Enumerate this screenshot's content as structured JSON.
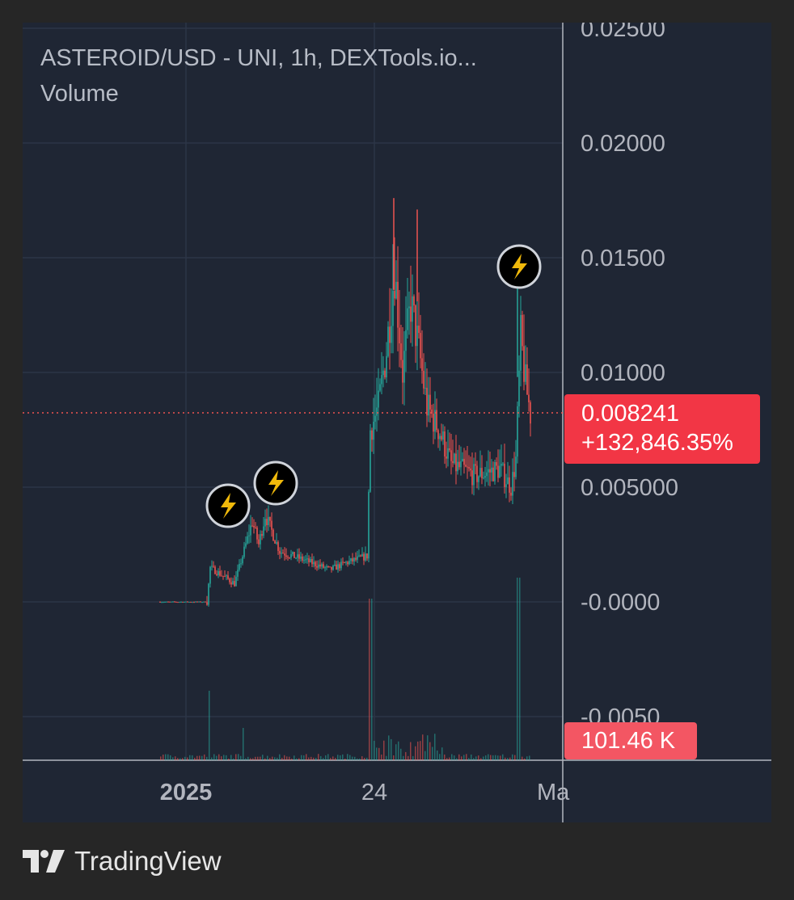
{
  "header": {
    "title": "ASTEROID/USD - UNI, 1h, DEXTools.io...",
    "volume_label": "Volume"
  },
  "badges": {
    "price": "0.008241",
    "change": "+132,846.35%",
    "volume": "101.46 K"
  },
  "brand": {
    "name": "TradingView"
  },
  "colors": {
    "background": "#1f2634",
    "up": "#26a69a",
    "down": "#ef5350",
    "price_badge": "#f23645",
    "grid": "#2c3546",
    "axis_text": "#b2b5be",
    "marker": "#f0b90b"
  },
  "chart_data": {
    "type": "candlestick",
    "title": "ASTEROID/USD - UNI, 1h, DEXTools.io...",
    "grid": true,
    "y_ticks": [
      "0.02500",
      "0.02000",
      "0.01500",
      "0.01000",
      "0.005000",
      "-0.0000",
      "-0.0050"
    ],
    "y_tick_values": [
      0.025,
      0.02,
      0.015,
      0.01,
      0.005,
      0.0,
      -0.005
    ],
    "ylim": [
      -0.0056,
      0.0262
    ],
    "x_ticks": [
      "2025",
      "24",
      "Ma"
    ],
    "last_price": 0.008241,
    "price_series": {
      "name": "ASTEROID/USD",
      "values": [
        0.0,
        0.0,
        0.0,
        0.0,
        0.0,
        0.0,
        0.0,
        0.0,
        0.0,
        0.0,
        0.0,
        0.0,
        0.0,
        0.0,
        0.0,
        0.0,
        0.0,
        0.0,
        0.0,
        0.0,
        0.0,
        0.0,
        0.0,
        0.0,
        0.0,
        0.0,
        0.0,
        0.0,
        0.0,
        0.0,
        0.0,
        0.0,
        0.0,
        0.0,
        0.0,
        0.0,
        0.0,
        0.0,
        0.0,
        0.0,
        0.0,
        0.0,
        0.0,
        0.0,
        0.0,
        0.0,
        0.0,
        0.0,
        0.0,
        0.0,
        0.0,
        0.0,
        0.0,
        0.0,
        0.0,
        0.0,
        0.0,
        0.0,
        0.0,
        0.0,
        0.0,
        0.0,
        0.0,
        0.0,
        0.0,
        0.0,
        0.0,
        0.0,
        0.0,
        0.0,
        0.0,
        0.0,
        0.0,
        0.0,
        0.0,
        0.0,
        0.0,
        0.0,
        0.0,
        0.0,
        0.0,
        0.0,
        0.0,
        0.0,
        0.0,
        0.0,
        0.0,
        0.0,
        0.0,
        0.0,
        0.0,
        0.0,
        0.0,
        0.0,
        0.0,
        0.0,
        0.0,
        0.0,
        0.0,
        0.0,
        0.0,
        0.0,
        0.0,
        0.0,
        0.0,
        0.0,
        0.0,
        0.0,
        0.0,
        0.0,
        0.0,
        0.0,
        0.0,
        0.0,
        0.0,
        0.0,
        0.0,
        0.0,
        0.0,
        0.0,
        0.0,
        0.0,
        0.0,
        0.0,
        0.0,
        0.0,
        0.0,
        0.0,
        0.0,
        0.0,
        0.0,
        0.0,
        0.0,
        0.0,
        0.0,
        0.0,
        0.0,
        0.0,
        0.0,
        0.0,
        0.0,
        0.0,
        0.0,
        0.0,
        0.0,
        0.0,
        0.0,
        0.0,
        0.0,
        0.0,
        0.0,
        0.0,
        0.0,
        0.0,
        0.0,
        0.0,
        0.0,
        0.0,
        0.0,
        0.0,
        0.0,
        0.0,
        0.0,
        0.0,
        0.0,
        0.0,
        0.0,
        0.0,
        0.0,
        0.0,
        0.0,
        0.0,
        0.0,
        0.0,
        0.0,
        0.0,
        0.0,
        0.0,
        0.0,
        0.0,
        0.0,
        0.0,
        0.0,
        0.0,
        0.0,
        0.0,
        0.0,
        0.0,
        0.0,
        0.0,
        0.0,
        0.0,
        0.0,
        0.0,
        0.0,
        0.0,
        0.0,
        0.0,
        0.0,
        0.0,
        0.0,
        0.0,
        0.0,
        0.0,
        0.0,
        0.0,
        0.0,
        0.0,
        0.0,
        0.0,
        0.0,
        0.0,
        0.0,
        0.0,
        0.0,
        0.0,
        0.0,
        0.0,
        0.0,
        0.0,
        0.0,
        0.0,
        0.0,
        0.0,
        0.0,
        0.0,
        0.0,
        0.0,
        0.0,
        0.0,
        0.0,
        0.0,
        0.0,
        0.0,
        0.0,
        0.0,
        0.0,
        0.0,
        0.0,
        0.0,
        0.0,
        0.0,
        0.0,
        0.0,
        0.0,
        0.0,
        0.0,
        0.0,
        0.0,
        0.0,
        0.0,
        0.0,
        0.0,
        0.0,
        0.0,
        0.0,
        0.0,
        0.0,
        0.0,
        0.0,
        0.0,
        0.0,
        0.0,
        0.0,
        0.0,
        0.0,
        0.0,
        0.0,
        0.0,
        0.0,
        0.0,
        0.0,
        0.0,
        0.0,
        0.0,
        0.0,
        0.0,
        0.0,
        0.0,
        0.0,
        0.0,
        0.0,
        0.0,
        0.0,
        0.0,
        0.0,
        0.0,
        0.0,
        0.0,
        0.0,
        0.0,
        0.0,
        0.0,
        0.0,
        0.0,
        0.0,
        0.0,
        0.0,
        0.0,
        0.0,
        0.0,
        0.0,
        0.0,
        0.0,
        0.0,
        0.0,
        0.0,
        0.0,
        0.0,
        0.0,
        0.0,
        0.0,
        0.0,
        0.0,
        0.0,
        0.0,
        0.0,
        0.0,
        0.0,
        0.0,
        0.0,
        0.0,
        0.0,
        0.0,
        0.0,
        0.0,
        0.0,
        0.0,
        0.0,
        0.0,
        0.0,
        0.0,
        0.0,
        0.0,
        0.0,
        0.0,
        0.0,
        0.0,
        0.0,
        0.0,
        0.0,
        0.0,
        0.0,
        0.0,
        0.0,
        0.0,
        0.0,
        0.0,
        0.0,
        0.0,
        0.0,
        0.0,
        0.0,
        0.0,
        0.0,
        0.0,
        0.0,
        0.0,
        0.0,
        0.0,
        0.0,
        0.0,
        0.0,
        0.0,
        0.0,
        0.0,
        0.0,
        0.0,
        0.0,
        0.0,
        0.0,
        0.0,
        0.0,
        0.0,
        0.0,
        0.0,
        0.0,
        0.0,
        0.0,
        0.0,
        0.0,
        0.0,
        0.0,
        0.0,
        0.0,
        0.0,
        0.0,
        0.0,
        0.0,
        0.0,
        0.0,
        0.0,
        0.0,
        0.0,
        0.0,
        0.0,
        0.0,
        0.0,
        0.0,
        0.0,
        0.0,
        0.0,
        0.0,
        0.0,
        0.0,
        0.0,
        0.0,
        0.0,
        0.0,
        0.0,
        0.0,
        0.0,
        0.0,
        0.0,
        0.0,
        0.0,
        0.0,
        0.0,
        0.0,
        0.0,
        0.0,
        0.0,
        0.0,
        0.0,
        0.0,
        0.0,
        0.0,
        0.0,
        0.0,
        0.0,
        0.0,
        0.0,
        0.0,
        0.0,
        0.0,
        0.0,
        0.0,
        0.0,
        0.0,
        0.0,
        0.0,
        0.0,
        0.0,
        0.0,
        0.0,
        0.0,
        0.0,
        0.0,
        0.0,
        0.0,
        0.0,
        0.0,
        0.0,
        0.0,
        0.0,
        0.0,
        0.0,
        0.0,
        0.0
      ]
    }
  }
}
